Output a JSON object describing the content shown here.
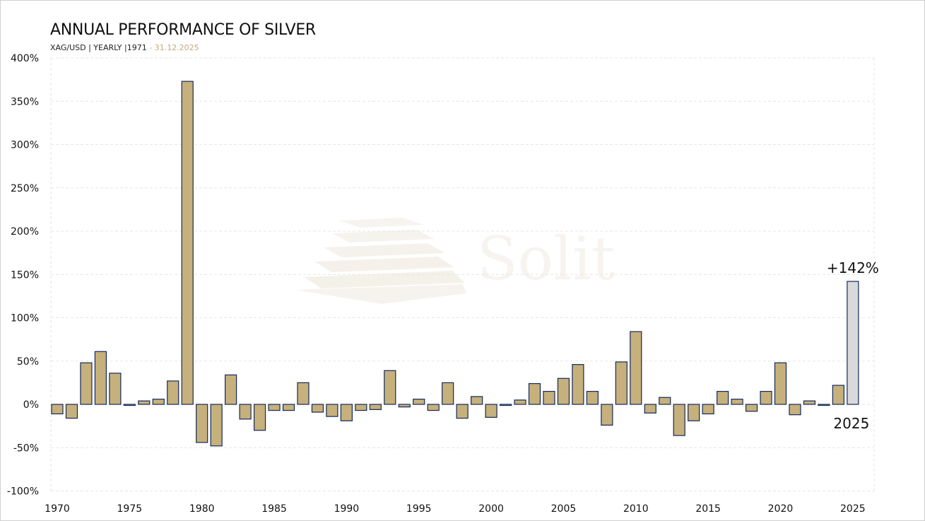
{
  "title": "ANNUAL PERFORMANCE OF SILVER",
  "subtitle": {
    "main": "XAG/USD | YEARLY |1971",
    "date": " - 31.12.2025"
  },
  "watermark": "Solit",
  "colors": {
    "bar": "#c6b07c",
    "bar_stroke": "#13295c",
    "highlight_bar": "#d9d9d9",
    "grid": "#e6e6e6",
    "accent": "#c4ab79"
  },
  "chart_data": {
    "type": "bar",
    "title": "ANNUAL PERFORMANCE OF SILVER",
    "xlabel": "",
    "ylabel": "",
    "ylim": [
      -100,
      400
    ],
    "grid": true,
    "y_ticks": [
      "400%",
      "350%",
      "300%",
      "250%",
      "200%",
      "150%",
      "100%",
      "50%",
      "0%",
      "-50%",
      "-100%"
    ],
    "y_tick_values": [
      400,
      350,
      300,
      250,
      200,
      150,
      100,
      50,
      0,
      -50,
      -100
    ],
    "x_ticks": [
      "1970",
      "1975",
      "1980",
      "1985",
      "1990",
      "1995",
      "2000",
      "2005",
      "2010",
      "2015",
      "2020",
      "2025"
    ],
    "categories": [
      1970,
      1971,
      1972,
      1973,
      1974,
      1975,
      1976,
      1977,
      1978,
      1979,
      1980,
      1981,
      1982,
      1983,
      1984,
      1985,
      1986,
      1987,
      1988,
      1989,
      1990,
      1991,
      1992,
      1993,
      1994,
      1995,
      1996,
      1997,
      1998,
      1999,
      2000,
      2001,
      2002,
      2003,
      2004,
      2005,
      2006,
      2007,
      2008,
      2009,
      2010,
      2011,
      2012,
      2013,
      2014,
      2015,
      2016,
      2017,
      2018,
      2019,
      2020,
      2021,
      2022,
      2023,
      2024,
      2025
    ],
    "values": [
      -11,
      -16,
      48,
      61,
      36,
      -1,
      4,
      6,
      27,
      373,
      -44,
      -48,
      34,
      -17,
      -30,
      -7,
      -7,
      25,
      -9,
      -14,
      -19,
      -7,
      -6,
      39,
      -3,
      6,
      -7,
      25,
      -16,
      9,
      -15,
      -1,
      5,
      24,
      15,
      30,
      46,
      15,
      -24,
      49,
      84,
      -10,
      8,
      -36,
      -19,
      -11,
      15,
      6,
      -8,
      15,
      48,
      -12,
      4,
      -1,
      22,
      142
    ],
    "highlight": {
      "year": 2025,
      "label": "+142%",
      "year_label": "2025"
    }
  }
}
